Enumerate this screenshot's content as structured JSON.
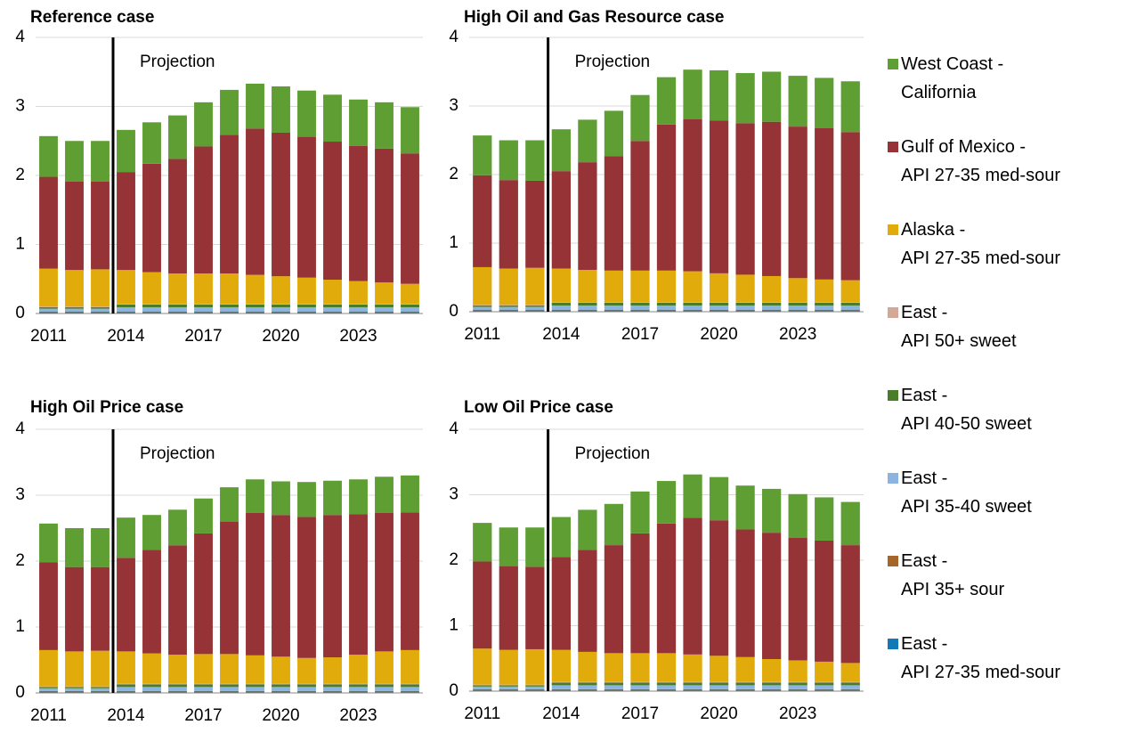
{
  "chart_data": [
    {
      "type": "stacked-bar",
      "title": "Reference case",
      "annotation": "Projection",
      "categories": [
        "2011",
        null,
        null,
        "2014",
        null,
        null,
        "2017",
        null,
        null,
        "2020",
        null,
        null,
        "2023",
        null,
        null
      ],
      "ylim": [
        0,
        4
      ],
      "yticks": [
        0,
        1,
        2,
        3,
        4
      ],
      "grid": true,
      "series": [
        {
          "name": "West Coast -\nCalifornia",
          "color": "#5e9e32",
          "values": [
            0.59,
            0.59,
            0.59,
            0.61,
            0.6,
            0.63,
            0.64,
            0.65,
            0.65,
            0.67,
            0.67,
            0.68,
            0.67,
            0.67,
            0.67
          ]
        },
        {
          "name": "Gulf of Mexico -\nAPI 27-35 med-sour",
          "color": "#953337",
          "values": [
            1.33,
            1.28,
            1.27,
            1.42,
            1.57,
            1.66,
            1.84,
            2.01,
            2.12,
            2.08,
            2.04,
            2.0,
            1.96,
            1.94,
            1.89
          ]
        },
        {
          "name": "Alaska -\nAPI 27-35 med-sour",
          "color": "#e2ab0c",
          "values": [
            0.55,
            0.53,
            0.54,
            0.49,
            0.46,
            0.44,
            0.44,
            0.44,
            0.42,
            0.4,
            0.38,
            0.35,
            0.33,
            0.31,
            0.29
          ]
        },
        {
          "name": "East -\nAPI 50+ sweet",
          "color": "#d5a895",
          "values": [
            0.01,
            0.01,
            0.01,
            0.01,
            0.01,
            0.01,
            0.01,
            0.01,
            0.01,
            0.01,
            0.01,
            0.01,
            0.01,
            0.01,
            0.01
          ]
        },
        {
          "name": "East -\nAPI 40-50 sweet",
          "color": "#4a7d2a",
          "values": [
            0.02,
            0.02,
            0.02,
            0.04,
            0.04,
            0.04,
            0.04,
            0.04,
            0.04,
            0.04,
            0.04,
            0.04,
            0.04,
            0.04,
            0.04
          ]
        },
        {
          "name": "East -\nAPI 35-40 sweet",
          "color": "#8cb4e0",
          "values": [
            0.04,
            0.04,
            0.04,
            0.06,
            0.06,
            0.06,
            0.06,
            0.06,
            0.06,
            0.06,
            0.06,
            0.06,
            0.06,
            0.06,
            0.06
          ]
        },
        {
          "name": "East -\nAPI 35+ sour",
          "color": "#a5662a",
          "values": [
            0.01,
            0.01,
            0.01,
            0.01,
            0.01,
            0.01,
            0.01,
            0.01,
            0.01,
            0.01,
            0.01,
            0.01,
            0.01,
            0.01,
            0.01
          ]
        },
        {
          "name": "East -\nAPI 27-35 med-sour",
          "color": "#1278b8",
          "values": [
            0.02,
            0.02,
            0.02,
            0.02,
            0.02,
            0.02,
            0.02,
            0.02,
            0.02,
            0.02,
            0.02,
            0.02,
            0.02,
            0.02,
            0.02
          ]
        }
      ]
    },
    {
      "type": "stacked-bar",
      "title": "High Oil and Gas Resource case",
      "annotation": "Projection",
      "categories": [
        "2011",
        null,
        null,
        "2014",
        null,
        null,
        "2017",
        null,
        null,
        "2020",
        null,
        null,
        "2023",
        null,
        null
      ],
      "ylim": [
        0,
        4
      ],
      "yticks": [
        0,
        1,
        2,
        3,
        4
      ],
      "grid": true,
      "series": [
        {
          "values": [
            0.58,
            0.58,
            0.59,
            0.61,
            0.62,
            0.66,
            0.67,
            0.69,
            0.72,
            0.73,
            0.73,
            0.73,
            0.74,
            0.73,
            0.74
          ]
        },
        {
          "values": [
            1.34,
            1.29,
            1.27,
            1.42,
            1.57,
            1.67,
            1.89,
            2.13,
            2.22,
            2.23,
            2.21,
            2.25,
            2.21,
            2.21,
            2.16
          ]
        },
        {
          "values": [
            0.55,
            0.53,
            0.54,
            0.49,
            0.47,
            0.46,
            0.46,
            0.46,
            0.45,
            0.42,
            0.4,
            0.38,
            0.35,
            0.33,
            0.32
          ]
        },
        {
          "values": [
            0.01,
            0.01,
            0.01,
            0.01,
            0.01,
            0.01,
            0.01,
            0.01,
            0.01,
            0.01,
            0.01,
            0.01,
            0.01,
            0.01,
            0.01
          ]
        },
        {
          "values": [
            0.02,
            0.02,
            0.02,
            0.04,
            0.04,
            0.04,
            0.04,
            0.04,
            0.04,
            0.04,
            0.04,
            0.04,
            0.04,
            0.04,
            0.04
          ]
        },
        {
          "values": [
            0.04,
            0.04,
            0.04,
            0.06,
            0.06,
            0.06,
            0.06,
            0.06,
            0.06,
            0.06,
            0.06,
            0.06,
            0.06,
            0.06,
            0.06
          ]
        },
        {
          "values": [
            0.01,
            0.01,
            0.01,
            0.01,
            0.01,
            0.01,
            0.01,
            0.01,
            0.01,
            0.01,
            0.01,
            0.01,
            0.01,
            0.01,
            0.01
          ]
        },
        {
          "values": [
            0.02,
            0.02,
            0.02,
            0.02,
            0.02,
            0.02,
            0.02,
            0.02,
            0.02,
            0.02,
            0.02,
            0.02,
            0.02,
            0.02,
            0.02
          ]
        }
      ]
    },
    {
      "type": "stacked-bar",
      "title": "High Oil Price case",
      "annotation": "Projection",
      "categories": [
        "2011",
        null,
        null,
        "2014",
        null,
        null,
        "2017",
        null,
        null,
        "2020",
        null,
        null,
        "2023",
        null,
        null
      ],
      "ylim": [
        0,
        4
      ],
      "yticks": [
        0,
        1,
        2,
        3,
        4
      ],
      "grid": true,
      "series": [
        {
          "values": [
            0.59,
            0.59,
            0.59,
            0.61,
            0.53,
            0.54,
            0.53,
            0.52,
            0.51,
            0.51,
            0.53,
            0.52,
            0.53,
            0.55,
            0.56
          ]
        },
        {
          "values": [
            1.33,
            1.28,
            1.27,
            1.42,
            1.57,
            1.66,
            1.83,
            2.01,
            2.16,
            2.15,
            2.14,
            2.16,
            2.13,
            2.1,
            2.09
          ]
        },
        {
          "values": [
            0.55,
            0.53,
            0.54,
            0.49,
            0.46,
            0.44,
            0.45,
            0.45,
            0.43,
            0.41,
            0.39,
            0.4,
            0.44,
            0.49,
            0.51
          ]
        },
        {
          "values": [
            0.01,
            0.01,
            0.01,
            0.01,
            0.01,
            0.01,
            0.01,
            0.01,
            0.01,
            0.01,
            0.01,
            0.01,
            0.01,
            0.01,
            0.01
          ]
        },
        {
          "values": [
            0.02,
            0.02,
            0.02,
            0.04,
            0.04,
            0.04,
            0.04,
            0.04,
            0.04,
            0.04,
            0.04,
            0.04,
            0.04,
            0.04,
            0.04
          ]
        },
        {
          "values": [
            0.04,
            0.04,
            0.04,
            0.06,
            0.06,
            0.06,
            0.06,
            0.06,
            0.06,
            0.06,
            0.06,
            0.06,
            0.06,
            0.06,
            0.06
          ]
        },
        {
          "values": [
            0.01,
            0.01,
            0.01,
            0.01,
            0.01,
            0.01,
            0.01,
            0.01,
            0.01,
            0.01,
            0.01,
            0.01,
            0.01,
            0.01,
            0.01
          ]
        },
        {
          "values": [
            0.02,
            0.02,
            0.02,
            0.02,
            0.02,
            0.02,
            0.02,
            0.02,
            0.02,
            0.02,
            0.02,
            0.02,
            0.02,
            0.02,
            0.02
          ]
        }
      ]
    },
    {
      "type": "stacked-bar",
      "title": "Low Oil Price case",
      "annotation": "Projection",
      "categories": [
        "2011",
        null,
        null,
        "2014",
        null,
        null,
        "2017",
        null,
        null,
        "2020",
        null,
        null,
        "2023",
        null,
        null
      ],
      "ylim": [
        0,
        4
      ],
      "yticks": [
        0,
        1,
        2,
        3,
        4
      ],
      "grid": true,
      "series": [
        {
          "values": [
            0.59,
            0.59,
            0.6,
            0.61,
            0.61,
            0.63,
            0.64,
            0.65,
            0.66,
            0.66,
            0.67,
            0.67,
            0.67,
            0.66,
            0.66
          ]
        },
        {
          "values": [
            1.33,
            1.28,
            1.26,
            1.42,
            1.56,
            1.65,
            1.83,
            1.98,
            2.09,
            2.07,
            1.95,
            1.93,
            1.87,
            1.85,
            1.8
          ]
        },
        {
          "values": [
            0.55,
            0.53,
            0.54,
            0.49,
            0.46,
            0.44,
            0.44,
            0.44,
            0.42,
            0.4,
            0.38,
            0.35,
            0.33,
            0.31,
            0.29
          ]
        },
        {
          "values": [
            0.01,
            0.01,
            0.01,
            0.01,
            0.01,
            0.01,
            0.01,
            0.01,
            0.01,
            0.01,
            0.01,
            0.01,
            0.01,
            0.01,
            0.01
          ]
        },
        {
          "values": [
            0.02,
            0.02,
            0.02,
            0.04,
            0.04,
            0.04,
            0.04,
            0.04,
            0.04,
            0.04,
            0.04,
            0.04,
            0.04,
            0.04,
            0.04
          ]
        },
        {
          "values": [
            0.04,
            0.04,
            0.04,
            0.06,
            0.06,
            0.06,
            0.06,
            0.06,
            0.06,
            0.06,
            0.06,
            0.06,
            0.06,
            0.06,
            0.06
          ]
        },
        {
          "values": [
            0.01,
            0.01,
            0.01,
            0.01,
            0.01,
            0.01,
            0.01,
            0.01,
            0.01,
            0.01,
            0.01,
            0.01,
            0.01,
            0.01,
            0.01
          ]
        },
        {
          "values": [
            0.02,
            0.02,
            0.02,
            0.02,
            0.02,
            0.02,
            0.02,
            0.02,
            0.02,
            0.02,
            0.02,
            0.02,
            0.02,
            0.02,
            0.02
          ]
        }
      ]
    }
  ]
}
